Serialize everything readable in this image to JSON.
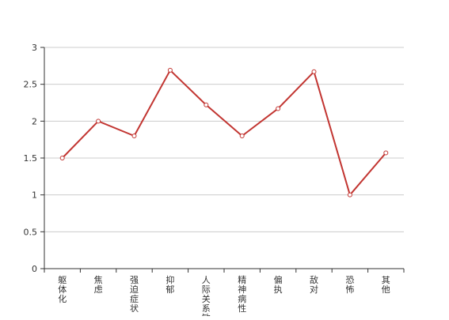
{
  "chart_data": {
    "type": "line",
    "title": "",
    "xlabel": "",
    "ylabel": "",
    "categories": [
      "躯体化",
      "焦虑",
      "强迫症状",
      "抑郁",
      "人际关系敏感",
      "精神病性",
      "偏执",
      "敌对",
      "恐怖",
      "其他"
    ],
    "series": [
      {
        "values": [
          1.5,
          2.0,
          1.8,
          2.69,
          2.22,
          1.8,
          2.17,
          2.67,
          1.0,
          1.57
        ]
      }
    ],
    "ylim": [
      0,
      3
    ],
    "yticks": [
      "0",
      "0.5",
      "1",
      "1.5",
      "2",
      "2.5",
      "3"
    ],
    "grid": "horizontal",
    "colors": {
      "line": "#c23531",
      "grid": "#cccccc",
      "axis": "#333333",
      "marker_fill": "#ffffff"
    }
  }
}
